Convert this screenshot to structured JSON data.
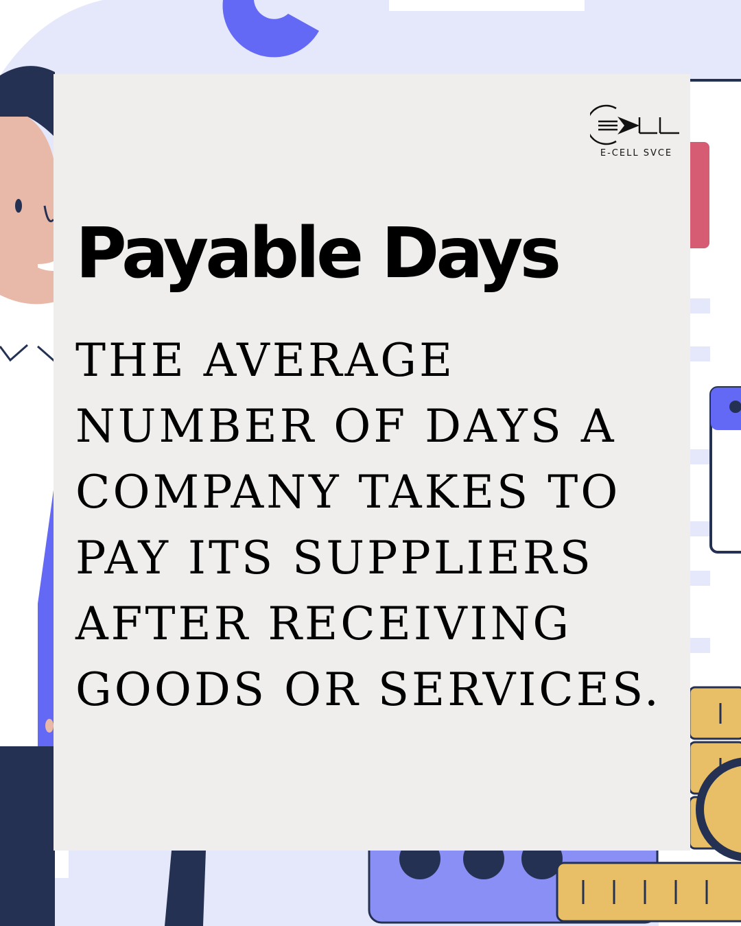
{
  "brand": {
    "logo_text": "E-CELL SVCE",
    "logo_icon": "ecell-arrow-logo-icon"
  },
  "headline": "Payable Days",
  "definition": "THE AVERAGE NUMBER OF DAYS A COMPANY TAKES TO PAY ITS SUPPLIERS AFTER RECEIVING GOODS OR SERVICES.",
  "colors": {
    "card": "#efeeec",
    "clipboard": "#e5e8fb",
    "accent_purple": "#6369f5",
    "navy": "#253152",
    "coin_gold": "#e8bf66",
    "tab_red": "#d55c72",
    "skin": "#e8b8a8"
  }
}
